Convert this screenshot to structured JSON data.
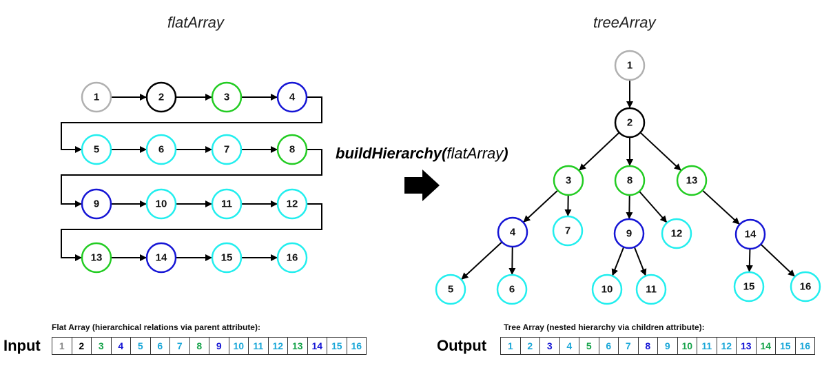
{
  "titles": {
    "left": "flatArray",
    "right": "treeArray"
  },
  "function_label": {
    "name": "buildHierarchy(",
    "arg": "flatArray",
    "close": ")"
  },
  "arrow_icon": "right-arrow-icon",
  "flat_caption": "Flat Array (hierarchical relations via parent attribute):",
  "tree_caption": "Tree Array (nested hierarchy via children attribute):",
  "input_label": "Input",
  "output_label": "Output",
  "colors": {
    "grey": "#b0b0b0",
    "black": "#000000",
    "green": "#22cc22",
    "blue": "#1515d5",
    "cyan": "#22eeee"
  },
  "flat_nodes": [
    {
      "label": "1",
      "color": "grey"
    },
    {
      "label": "2",
      "color": "black"
    },
    {
      "label": "3",
      "color": "green"
    },
    {
      "label": "4",
      "color": "blue"
    },
    {
      "label": "5",
      "color": "cyan"
    },
    {
      "label": "6",
      "color": "cyan"
    },
    {
      "label": "7",
      "color": "cyan"
    },
    {
      "label": "8",
      "color": "green"
    },
    {
      "label": "9",
      "color": "blue"
    },
    {
      "label": "10",
      "color": "cyan"
    },
    {
      "label": "11",
      "color": "cyan"
    },
    {
      "label": "12",
      "color": "cyan"
    },
    {
      "label": "13",
      "color": "green"
    },
    {
      "label": "14",
      "color": "blue"
    },
    {
      "label": "15",
      "color": "cyan"
    },
    {
      "label": "16",
      "color": "cyan"
    }
  ],
  "tree_nodes": [
    {
      "label": "1",
      "color": "grey",
      "parent": null
    },
    {
      "label": "2",
      "color": "black",
      "parent": "1"
    },
    {
      "label": "3",
      "color": "green",
      "parent": "2"
    },
    {
      "label": "8",
      "color": "green",
      "parent": "2"
    },
    {
      "label": "13",
      "color": "green",
      "parent": "2"
    },
    {
      "label": "4",
      "color": "blue",
      "parent": "3"
    },
    {
      "label": "7",
      "color": "cyan",
      "parent": "3"
    },
    {
      "label": "9",
      "color": "blue",
      "parent": "8"
    },
    {
      "label": "12",
      "color": "cyan",
      "parent": "8"
    },
    {
      "label": "14",
      "color": "blue",
      "parent": "13"
    },
    {
      "label": "5",
      "color": "cyan",
      "parent": "4"
    },
    {
      "label": "6",
      "color": "cyan",
      "parent": "4"
    },
    {
      "label": "10",
      "color": "cyan",
      "parent": "9"
    },
    {
      "label": "11",
      "color": "cyan",
      "parent": "9"
    },
    {
      "label": "15",
      "color": "cyan",
      "parent": "14"
    },
    {
      "label": "16",
      "color": "cyan",
      "parent": "14"
    }
  ],
  "input_cells": [
    {
      "label": "1",
      "color": "#8a8a8a"
    },
    {
      "label": "2",
      "color": "#000000"
    },
    {
      "label": "3",
      "color": "#16a34a"
    },
    {
      "label": "4",
      "color": "#1515d5"
    },
    {
      "label": "5",
      "color": "#1aa7d8"
    },
    {
      "label": "6",
      "color": "#1aa7d8"
    },
    {
      "label": "7",
      "color": "#1aa7d8"
    },
    {
      "label": "8",
      "color": "#16a34a"
    },
    {
      "label": "9",
      "color": "#1515d5"
    },
    {
      "label": "10",
      "color": "#1aa7d8"
    },
    {
      "label": "11",
      "color": "#1aa7d8"
    },
    {
      "label": "12",
      "color": "#1aa7d8"
    },
    {
      "label": "13",
      "color": "#16a34a"
    },
    {
      "label": "14",
      "color": "#1515d5"
    },
    {
      "label": "15",
      "color": "#1aa7d8"
    },
    {
      "label": "16",
      "color": "#1aa7d8"
    }
  ],
  "output_cells": [
    {
      "label": "1",
      "color": "#1aa7d8"
    },
    {
      "label": "2",
      "color": "#1aa7d8"
    },
    {
      "label": "3",
      "color": "#1515d5"
    },
    {
      "label": "4",
      "color": "#1aa7d8"
    },
    {
      "label": "5",
      "color": "#16a34a"
    },
    {
      "label": "6",
      "color": "#1aa7d8"
    },
    {
      "label": "7",
      "color": "#1aa7d8"
    },
    {
      "label": "8",
      "color": "#1515d5"
    },
    {
      "label": "9",
      "color": "#1aa7d8"
    },
    {
      "label": "10",
      "color": "#16a34a"
    },
    {
      "label": "11",
      "color": "#1aa7d8"
    },
    {
      "label": "12",
      "color": "#1aa7d8"
    },
    {
      "label": "13",
      "color": "#1515d5"
    },
    {
      "label": "14",
      "color": "#16a34a"
    },
    {
      "label": "15",
      "color": "#1aa7d8"
    },
    {
      "label": "16",
      "color": "#1aa7d8"
    }
  ]
}
